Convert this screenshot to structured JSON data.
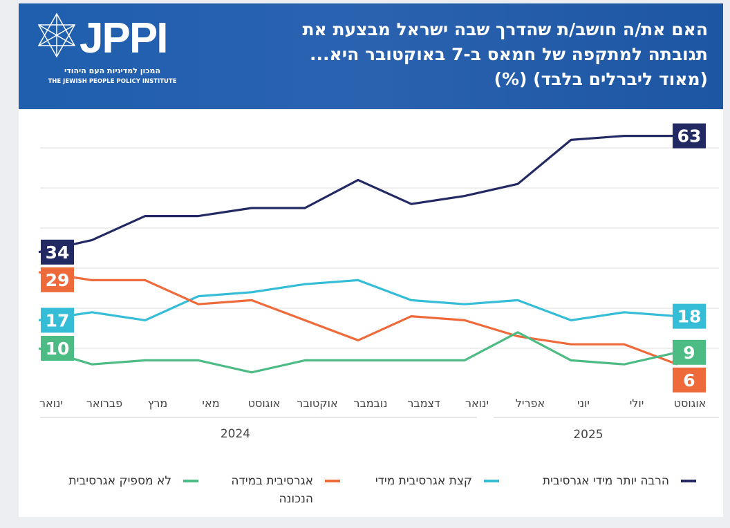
{
  "header": {
    "title": [
      "האם את/ה חושב/ת שהדרך שבה ישראל מבצעת את",
      "תגובתה למתקפה של חמאס ב-7 באוקטובר היא...",
      "(מאוד ליברלים בלבד) (%)"
    ],
    "logo": "JPPI",
    "logo_hebrew": "המכון למדיניות העם היהודי",
    "logo_english": "THE JEWISH PEOPLE POLICY INSTITUTE"
  },
  "chart_data": {
    "type": "line",
    "categories": [
      "ינואר",
      "פברואר",
      "מרץ",
      "מאי",
      "אוגוסט",
      "אוקטובר",
      "נובמבר",
      "דצמבר",
      "ינואר",
      "אפריל",
      "יוני",
      "יולי",
      "אוגוסט"
    ],
    "years": [
      "2024",
      "2025"
    ],
    "ylim": [
      0,
      65
    ],
    "yticks": [
      10,
      20,
      30,
      40,
      50,
      60
    ],
    "grid": true,
    "series": [
      {
        "name": "הרבה יותר מידי אגרסיבית",
        "color": "#232a63",
        "values": [
          34,
          37,
          43,
          43,
          45,
          45,
          52,
          46,
          48,
          51,
          62,
          63,
          63
        ]
      },
      {
        "name": "קצת אגרסיבית מידי",
        "color": "#35bcd6",
        "values": [
          17,
          19,
          17,
          23,
          24,
          26,
          27,
          22,
          21,
          22,
          17,
          19,
          18
        ]
      },
      {
        "name": "אגרסיבית במידה הנכונה",
        "color": "#ef6a3a",
        "values": [
          29,
          27,
          27,
          21,
          22,
          17,
          12,
          18,
          17,
          13,
          11,
          11,
          6
        ]
      },
      {
        "name": "לא מספיק אגרסיבית",
        "color": "#4dbb84",
        "values": [
          10,
          6,
          7,
          7,
          4,
          7,
          7,
          7,
          7,
          14,
          7,
          6,
          9
        ]
      }
    ]
  }
}
